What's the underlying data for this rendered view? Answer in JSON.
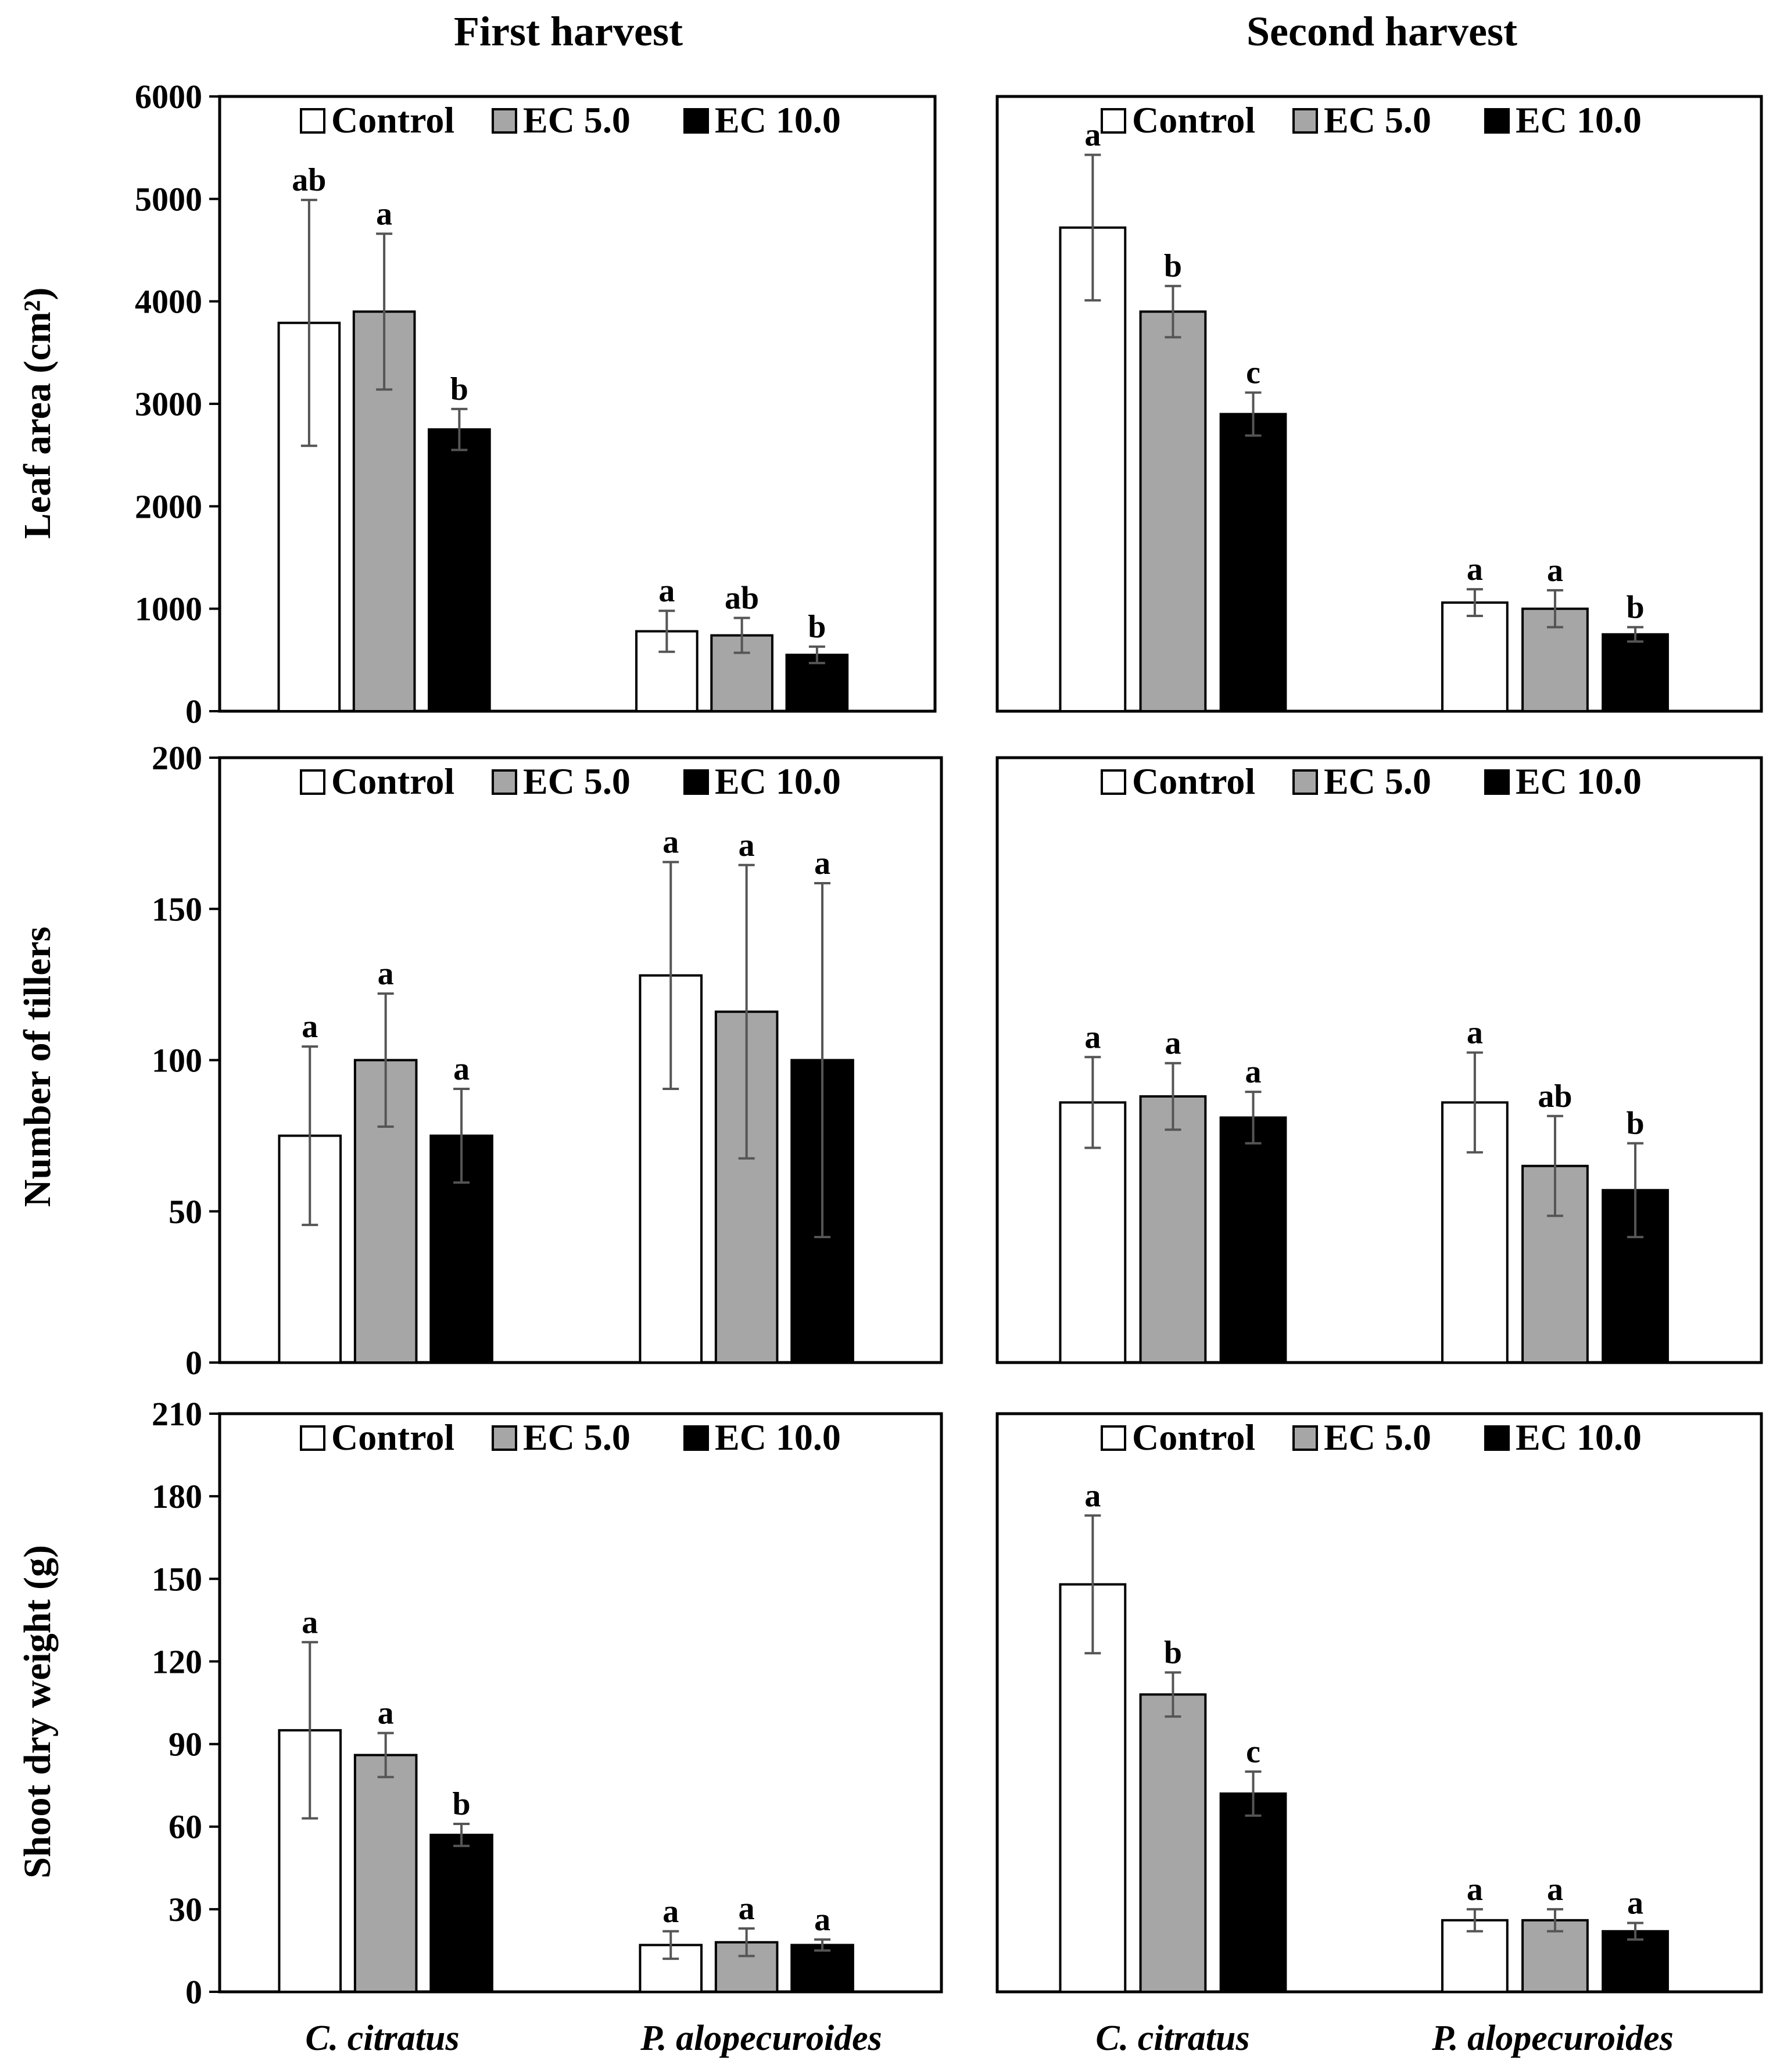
{
  "figure": {
    "column_titles": [
      "First harvest",
      "Second harvest"
    ],
    "x_categories": [
      "C. citratus",
      "P. alopecuroides"
    ],
    "legend": [
      {
        "label": "Control",
        "color": "#ffffff"
      },
      {
        "label": "EC 5.0",
        "color": "#a6a6a6"
      },
      {
        "label": "EC 10.0",
        "color": "#000000"
      }
    ],
    "colors": {
      "control": "#ffffff",
      "ec5": "#a6a6a6",
      "ec10": "#000000",
      "errorbar": "#555555"
    }
  },
  "chart_data": [
    {
      "type": "bar",
      "title": "First harvest",
      "ylabel": "Leaf area (cm²)",
      "xlabel": "",
      "ylim": [
        0,
        6000
      ],
      "yticks": [
        0,
        1000,
        2000,
        3000,
        4000,
        5000,
        6000
      ],
      "show_yticks": true,
      "categories": [
        "C. citratus",
        "P. alopecuroides"
      ],
      "series": [
        {
          "name": "Control",
          "values": [
            3790,
            780
          ],
          "errors": [
            1200,
            200
          ],
          "letters": [
            "ab",
            "a"
          ]
        },
        {
          "name": "EC 5.0",
          "values": [
            3900,
            740
          ],
          "errors": [
            760,
            170
          ],
          "letters": [
            "a",
            "ab"
          ]
        },
        {
          "name": "EC 10.0",
          "values": [
            2750,
            550
          ],
          "errors": [
            200,
            80
          ],
          "letters": [
            "b",
            "b"
          ]
        }
      ]
    },
    {
      "type": "bar",
      "title": "Second harvest",
      "ylabel": "",
      "xlabel": "",
      "ylim": [
        0,
        6000
      ],
      "yticks": [
        0,
        1000,
        2000,
        3000,
        4000,
        5000,
        6000
      ],
      "show_yticks": false,
      "categories": [
        "C. citratus",
        "P. alopecuroides"
      ],
      "series": [
        {
          "name": "Control",
          "values": [
            4720,
            1060
          ],
          "errors": [
            710,
            130
          ],
          "letters": [
            "a",
            "a"
          ]
        },
        {
          "name": "EC 5.0",
          "values": [
            3900,
            1000
          ],
          "errors": [
            250,
            180
          ],
          "letters": [
            "b",
            "a"
          ]
        },
        {
          "name": "EC 10.0",
          "values": [
            2900,
            750
          ],
          "errors": [
            210,
            70
          ],
          "letters": [
            "c",
            "b"
          ]
        }
      ]
    },
    {
      "type": "bar",
      "title": "",
      "ylabel": "Number of tillers",
      "xlabel": "",
      "ylim": [
        0,
        200
      ],
      "yticks": [
        0,
        50,
        100,
        150,
        200
      ],
      "show_yticks": true,
      "categories": [
        "C. citratus",
        "P. alopecuroides"
      ],
      "series": [
        {
          "name": "Control",
          "values": [
            75,
            128
          ],
          "errors": [
            29.5,
            37.5
          ],
          "letters": [
            "a",
            "a"
          ]
        },
        {
          "name": "EC 5.0",
          "values": [
            100,
            116
          ],
          "errors": [
            22,
            48.5
          ],
          "letters": [
            "a",
            "a"
          ]
        },
        {
          "name": "EC 10.0",
          "values": [
            75,
            100
          ],
          "errors": [
            15.5,
            58.5
          ],
          "letters": [
            "a",
            "a"
          ]
        }
      ]
    },
    {
      "type": "bar",
      "title": "",
      "ylabel": "",
      "xlabel": "",
      "ylim": [
        0,
        200
      ],
      "yticks": [
        0,
        50,
        100,
        150,
        200
      ],
      "show_yticks": false,
      "categories": [
        "C. citratus",
        "P. alopecuroides"
      ],
      "series": [
        {
          "name": "Control",
          "values": [
            86,
            86
          ],
          "errors": [
            15,
            16.5
          ],
          "letters": [
            "a",
            "a"
          ]
        },
        {
          "name": "EC 5.0",
          "values": [
            88,
            65
          ],
          "errors": [
            11,
            16.5
          ],
          "letters": [
            "a",
            "ab"
          ]
        },
        {
          "name": "EC 10.0",
          "values": [
            81,
            57
          ],
          "errors": [
            8.5,
            15.5
          ],
          "letters": [
            "a",
            "b"
          ]
        }
      ]
    },
    {
      "type": "bar",
      "title": "",
      "ylabel": "Shoot dry weight (g)",
      "xlabel": "",
      "ylim": [
        0,
        210
      ],
      "yticks": [
        0,
        30,
        60,
        90,
        120,
        150,
        180,
        210
      ],
      "show_yticks": true,
      "categories": [
        "C. citratus",
        "P. alopecuroides"
      ],
      "series": [
        {
          "name": "Control",
          "values": [
            95,
            17
          ],
          "errors": [
            32,
            5
          ],
          "letters": [
            "a",
            "a"
          ]
        },
        {
          "name": "EC 5.0",
          "values": [
            86,
            18
          ],
          "errors": [
            8,
            5
          ],
          "letters": [
            "a",
            "a"
          ]
        },
        {
          "name": "EC 10.0",
          "values": [
            57,
            17
          ],
          "errors": [
            4,
            2
          ],
          "letters": [
            "b",
            "a"
          ]
        }
      ]
    },
    {
      "type": "bar",
      "title": "",
      "ylabel": "",
      "xlabel": "",
      "ylim": [
        0,
        210
      ],
      "yticks": [
        0,
        30,
        60,
        90,
        120,
        150,
        180,
        210
      ],
      "show_yticks": false,
      "categories": [
        "C. citratus",
        "P. alopecuroides"
      ],
      "series": [
        {
          "name": "Control",
          "values": [
            148,
            26
          ],
          "errors": [
            25,
            4
          ],
          "letters": [
            "a",
            "a"
          ]
        },
        {
          "name": "EC 5.0",
          "values": [
            108,
            26
          ],
          "errors": [
            8,
            4
          ],
          "letters": [
            "b",
            "a"
          ]
        },
        {
          "name": "EC 10.0",
          "values": [
            72,
            22
          ],
          "errors": [
            8,
            3
          ],
          "letters": [
            "c",
            "a"
          ]
        }
      ]
    }
  ]
}
